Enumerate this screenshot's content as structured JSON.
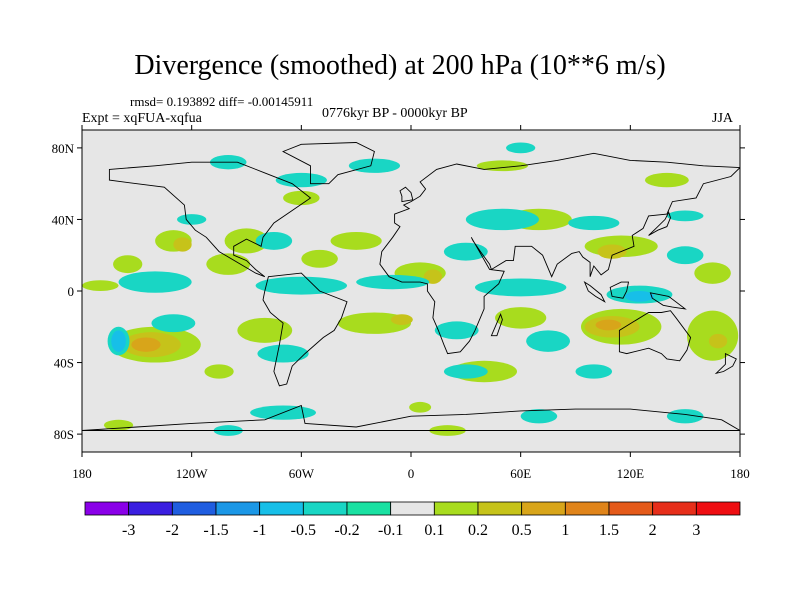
{
  "title": "Divergence (smoothed) at 200 hPa (10**6 m/s)",
  "stats": "rmsd= 0.193892 diff= -0.00145911",
  "experiment": "Expt = xqFUA-xqfua",
  "period": "0776kyr BP - 0000kyr BP",
  "season": "JJA",
  "axes": {
    "x_ticks": [
      "180",
      "120W",
      "60W",
      "0",
      "60E",
      "120E",
      "180"
    ],
    "x_values": [
      -180,
      -120,
      -60,
      0,
      60,
      120,
      180
    ],
    "y_ticks": [
      "80N",
      "40N",
      "0",
      "40S",
      "80S"
    ],
    "y_values": [
      80,
      40,
      0,
      -40,
      -80
    ]
  },
  "colorbar": {
    "labels": [
      "-3",
      "-2",
      "-1.5",
      "-1",
      "-0.5",
      "-0.2",
      "-0.1",
      "0.1",
      "0.2",
      "0.5",
      "1",
      "1.5",
      "2",
      "3"
    ],
    "colors": [
      "#8a00e8",
      "#3a1ee0",
      "#1f5de0",
      "#1b97e6",
      "#17bfe8",
      "#19d6c4",
      "#1ae1a2",
      "#e6e6e6",
      "#a8dc1e",
      "#c6c31a",
      "#d8a51a",
      "#e0841a",
      "#e45a1a",
      "#e62e1a",
      "#ee0e12"
    ]
  },
  "map": {
    "background": "#e6e6e6",
    "blobs": [
      {
        "level": 8,
        "lon": -130,
        "lat": 28,
        "rx": 10,
        "ry": 6
      },
      {
        "level": 9,
        "lon": -125,
        "lat": 26,
        "rx": 5,
        "ry": 4
      },
      {
        "level": 8,
        "lon": -155,
        "lat": 15,
        "rx": 8,
        "ry": 5
      },
      {
        "level": 8,
        "lon": -100,
        "lat": 15,
        "rx": 12,
        "ry": 6
      },
      {
        "level": 8,
        "lon": -90,
        "lat": 28,
        "rx": 12,
        "ry": 7
      },
      {
        "level": 8,
        "lon": -30,
        "lat": 28,
        "rx": 14,
        "ry": 5
      },
      {
        "level": 8,
        "lon": -50,
        "lat": 18,
        "rx": 10,
        "ry": 5
      },
      {
        "level": 8,
        "lon": 5,
        "lat": 10,
        "rx": 14,
        "ry": 6
      },
      {
        "level": 9,
        "lon": 12,
        "lat": 8,
        "rx": 5,
        "ry": 4
      },
      {
        "level": 8,
        "lon": 70,
        "lat": 40,
        "rx": 18,
        "ry": 6
      },
      {
        "level": 8,
        "lon": 115,
        "lat": 25,
        "rx": 20,
        "ry": 6
      },
      {
        "level": 9,
        "lon": 110,
        "lat": 22,
        "rx": 8,
        "ry": 4
      },
      {
        "level": 8,
        "lon": 165,
        "lat": 10,
        "rx": 10,
        "ry": 6
      },
      {
        "level": 8,
        "lon": -60,
        "lat": 52,
        "rx": 10,
        "ry": 4
      },
      {
        "level": 8,
        "lon": 50,
        "lat": 70,
        "rx": 14,
        "ry": 3
      },
      {
        "level": 8,
        "lon": 140,
        "lat": 62,
        "rx": 12,
        "ry": 4
      },
      {
        "level": 8,
        "lon": -140,
        "lat": -30,
        "rx": 25,
        "ry": 10
      },
      {
        "level": 9,
        "lon": -142,
        "lat": -30,
        "rx": 16,
        "ry": 7
      },
      {
        "level": 10,
        "lon": -145,
        "lat": -30,
        "rx": 8,
        "ry": 4
      },
      {
        "level": 8,
        "lon": -80,
        "lat": -22,
        "rx": 15,
        "ry": 7
      },
      {
        "level": 8,
        "lon": -20,
        "lat": -18,
        "rx": 20,
        "ry": 6
      },
      {
        "level": 9,
        "lon": -5,
        "lat": -16,
        "rx": 6,
        "ry": 3
      },
      {
        "level": 8,
        "lon": 40,
        "lat": -45,
        "rx": 18,
        "ry": 6
      },
      {
        "level": 8,
        "lon": 60,
        "lat": -15,
        "rx": 14,
        "ry": 6
      },
      {
        "level": 8,
        "lon": 115,
        "lat": -20,
        "rx": 22,
        "ry": 10
      },
      {
        "level": 9,
        "lon": 110,
        "lat": -20,
        "rx": 15,
        "ry": 6
      },
      {
        "level": 10,
        "lon": 108,
        "lat": -19,
        "rx": 7,
        "ry": 3
      },
      {
        "level": 8,
        "lon": 165,
        "lat": -25,
        "rx": 14,
        "ry": 14
      },
      {
        "level": 9,
        "lon": 168,
        "lat": -28,
        "rx": 5,
        "ry": 4
      },
      {
        "level": 8,
        "lon": -160,
        "lat": -75,
        "rx": 8,
        "ry": 3
      },
      {
        "level": 8,
        "lon": 5,
        "lat": -65,
        "rx": 6,
        "ry": 3
      },
      {
        "level": 8,
        "lon": 20,
        "lat": -78,
        "rx": 10,
        "ry": 3
      },
      {
        "level": 8,
        "lon": -105,
        "lat": -45,
        "rx": 8,
        "ry": 4
      },
      {
        "level": 8,
        "lon": -170,
        "lat": 3,
        "rx": 10,
        "ry": 3
      },
      {
        "level": 5,
        "lon": -140,
        "lat": 5,
        "rx": 20,
        "ry": 6
      },
      {
        "level": 5,
        "lon": -130,
        "lat": -18,
        "rx": 12,
        "ry": 5
      },
      {
        "level": 5,
        "lon": -60,
        "lat": 3,
        "rx": 25,
        "ry": 5
      },
      {
        "level": 5,
        "lon": -10,
        "lat": 5,
        "rx": 20,
        "ry": 4
      },
      {
        "level": 5,
        "lon": 30,
        "lat": 22,
        "rx": 12,
        "ry": 5
      },
      {
        "level": 5,
        "lon": 60,
        "lat": 2,
        "rx": 25,
        "ry": 5
      },
      {
        "level": 5,
        "lon": 25,
        "lat": -22,
        "rx": 12,
        "ry": 5
      },
      {
        "level": 5,
        "lon": 75,
        "lat": -28,
        "rx": 12,
        "ry": 6
      },
      {
        "level": 5,
        "lon": 125,
        "lat": -2,
        "rx": 18,
        "ry": 5
      },
      {
        "level": 4,
        "lon": 125,
        "lat": -3,
        "rx": 8,
        "ry": 3
      },
      {
        "level": 5,
        "lon": -160,
        "lat": -28,
        "rx": 6,
        "ry": 8
      },
      {
        "level": 4,
        "lon": -160,
        "lat": -28,
        "rx": 4,
        "ry": 6
      },
      {
        "level": 5,
        "lon": -70,
        "lat": -35,
        "rx": 14,
        "ry": 5
      },
      {
        "level": 5,
        "lon": -75,
        "lat": 28,
        "rx": 10,
        "ry": 5
      },
      {
        "level": 5,
        "lon": -60,
        "lat": 62,
        "rx": 14,
        "ry": 4
      },
      {
        "level": 5,
        "lon": -100,
        "lat": 72,
        "rx": 10,
        "ry": 4
      },
      {
        "level": 5,
        "lon": -20,
        "lat": 70,
        "rx": 14,
        "ry": 4
      },
      {
        "level": 5,
        "lon": 50,
        "lat": 40,
        "rx": 20,
        "ry": 6
      },
      {
        "level": 5,
        "lon": 60,
        "lat": 80,
        "rx": 8,
        "ry": 3
      },
      {
        "level": 5,
        "lon": 100,
        "lat": 38,
        "rx": 14,
        "ry": 4
      },
      {
        "level": 5,
        "lon": 150,
        "lat": 20,
        "rx": 10,
        "ry": 5
      },
      {
        "level": 5,
        "lon": 150,
        "lat": 42,
        "rx": 10,
        "ry": 3
      },
      {
        "level": 5,
        "lon": -120,
        "lat": 40,
        "rx": 8,
        "ry": 3
      },
      {
        "level": 5,
        "lon": 30,
        "lat": -45,
        "rx": 12,
        "ry": 4
      },
      {
        "level": 5,
        "lon": -70,
        "lat": -68,
        "rx": 18,
        "ry": 4
      },
      {
        "level": 5,
        "lon": 100,
        "lat": -45,
        "rx": 10,
        "ry": 4
      },
      {
        "level": 5,
        "lon": 70,
        "lat": -70,
        "rx": 10,
        "ry": 4
      },
      {
        "level": 5,
        "lon": 150,
        "lat": -70,
        "rx": 10,
        "ry": 4
      },
      {
        "level": 5,
        "lon": -100,
        "lat": -78,
        "rx": 8,
        "ry": 3
      }
    ]
  }
}
